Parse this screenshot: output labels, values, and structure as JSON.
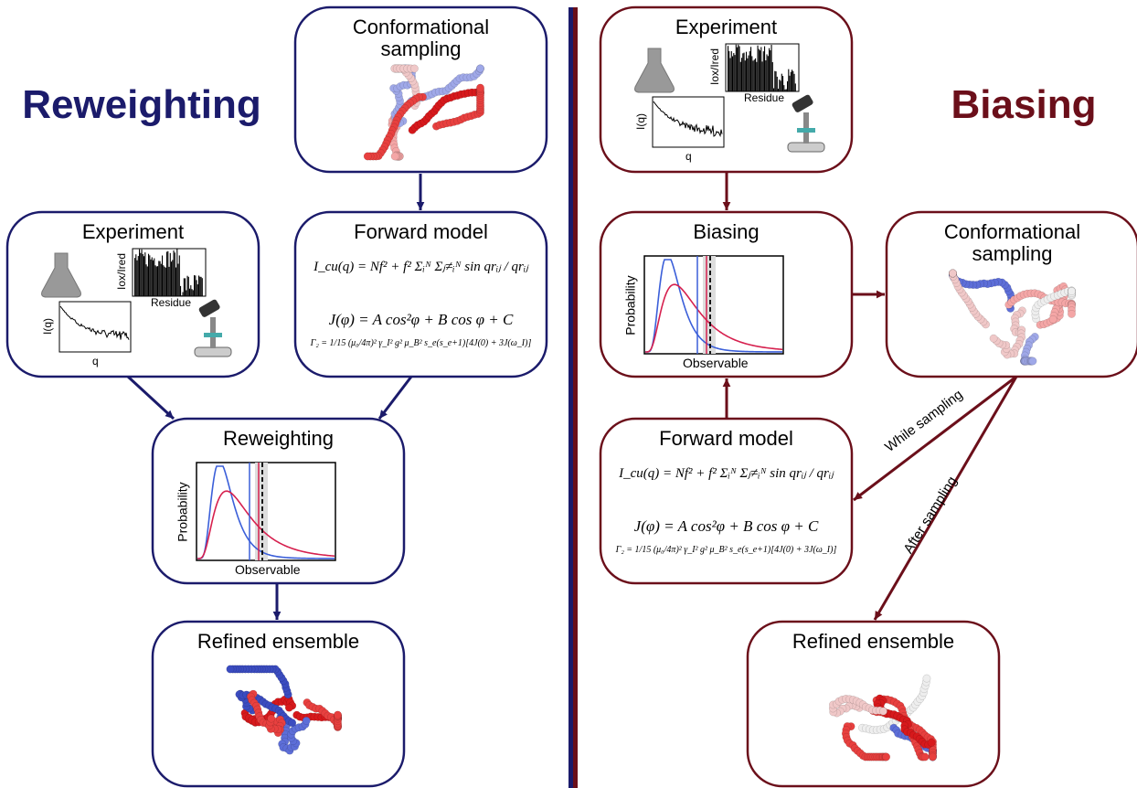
{
  "panels": [
    {
      "title": "Reweighting",
      "nodes": [
        {
          "label": "Conformational sampling"
        },
        {
          "label": "Experiment",
          "plots": {
            "ratio_axis": "Iox/Ired",
            "residue_axis": "Residue",
            "saxs_y": "I(q)",
            "saxs_x": "q"
          }
        },
        {
          "label": "Forward model",
          "equations": [
            "I_cu(q) = Nf² + f² Σᵢᴺ Σⱼ≠ᵢᴺ sin qrᵢⱼ / qrᵢⱼ",
            "J(φ) = A cos²φ + B cos φ + C",
            "Γ₂ = 1/15 (μ₀/4π)² γ_I² g² μ_B² s_e(s_e+1)[4J(0) + 3J(ω_I)]"
          ]
        },
        {
          "label": "Reweighting",
          "plot": {
            "y": "Probability",
            "x": "Observable"
          }
        },
        {
          "label": "Refined ensemble"
        }
      ]
    },
    {
      "title": "Biasing",
      "nodes": [
        {
          "label": "Experiment",
          "plots": {
            "ratio_axis": "Iox/Ired",
            "residue_axis": "Residue",
            "saxs_y": "I(q)",
            "saxs_x": "q"
          }
        },
        {
          "label": "Biasing",
          "plot": {
            "y": "Probability",
            "x": "Observable"
          }
        },
        {
          "label": "Conformational sampling"
        },
        {
          "label": "Forward model",
          "equations": [
            "I_cu(q) = Nf² + f² Σᵢᴺ Σⱼ≠ᵢᴺ sin qrᵢⱼ / qrᵢⱼ",
            "J(φ) = A cos²φ + B cos φ + C",
            "Γ₂ = 1/15 (μ₀/4π)² γ_I² g² μ_B² s_e(s_e+1)[4J(0) + 3J(ω_I)]"
          ]
        },
        {
          "label": "Refined ensemble"
        }
      ],
      "arrow_labels": [
        "While sampling",
        "After sampling"
      ]
    }
  ]
}
